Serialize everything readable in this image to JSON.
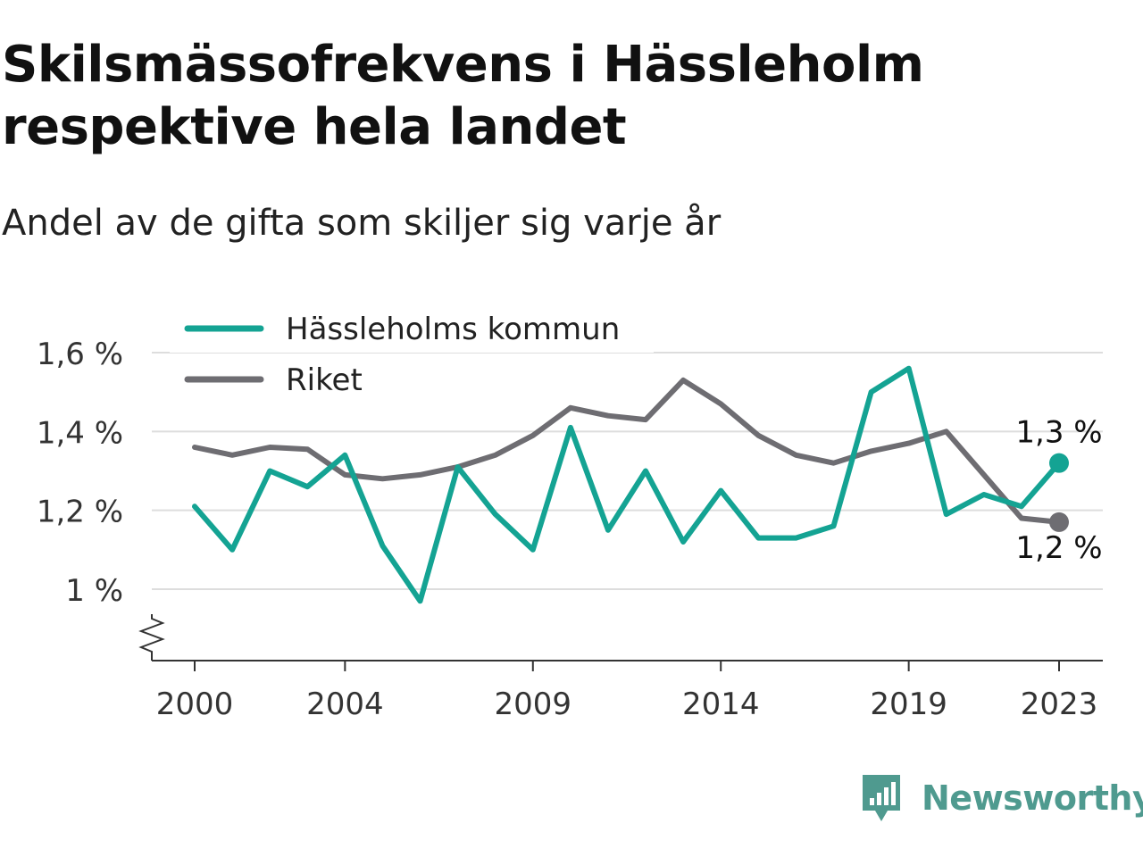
{
  "title": "Skilsmässofrekvens i Hässleholm respektive hela landet",
  "subtitle": "Andel av de gifta som skiljer sig varje år",
  "brand": {
    "name": "Newsworthy",
    "icon": "newsworthy-logo-icon",
    "color": "#4f9a8f"
  },
  "chart_data": {
    "type": "line",
    "x": [
      2000,
      2001,
      2002,
      2003,
      2004,
      2005,
      2006,
      2007,
      2008,
      2009,
      2010,
      2011,
      2012,
      2013,
      2014,
      2015,
      2016,
      2017,
      2018,
      2019,
      2020,
      2021,
      2022,
      2023
    ],
    "x_tick_labels": [
      "2000",
      "2004",
      "2009",
      "2014",
      "2019",
      "2023"
    ],
    "x_ticks": [
      2000,
      2004,
      2009,
      2014,
      2019,
      2023
    ],
    "y_tick_labels": [
      "1 %",
      "1,2 %",
      "1,4 %",
      "1,6 %"
    ],
    "y_ticks": [
      1.0,
      1.2,
      1.4,
      1.6
    ],
    "ylim": [
      0.85,
      1.6
    ],
    "y_axis_break": true,
    "grid": true,
    "legend_position": "top-left",
    "series": [
      {
        "name": "Hässleholms kommun",
        "color": "#14a393",
        "values": [
          1.21,
          1.1,
          1.3,
          1.26,
          1.34,
          1.11,
          0.97,
          1.31,
          1.19,
          1.1,
          1.41,
          1.15,
          1.3,
          1.12,
          1.25,
          1.13,
          1.13,
          1.16,
          1.5,
          1.56,
          1.19,
          1.24,
          1.21,
          1.32
        ],
        "end_label": "1,3 %"
      },
      {
        "name": "Riket",
        "color": "#6e6d72",
        "values": [
          1.36,
          1.34,
          1.36,
          1.355,
          1.29,
          1.28,
          1.29,
          1.31,
          1.34,
          1.39,
          1.46,
          1.44,
          1.43,
          1.53,
          1.47,
          1.39,
          1.34,
          1.32,
          1.35,
          1.37,
          1.4,
          1.29,
          1.18,
          1.17
        ],
        "end_label": "1,2 %"
      }
    ]
  }
}
